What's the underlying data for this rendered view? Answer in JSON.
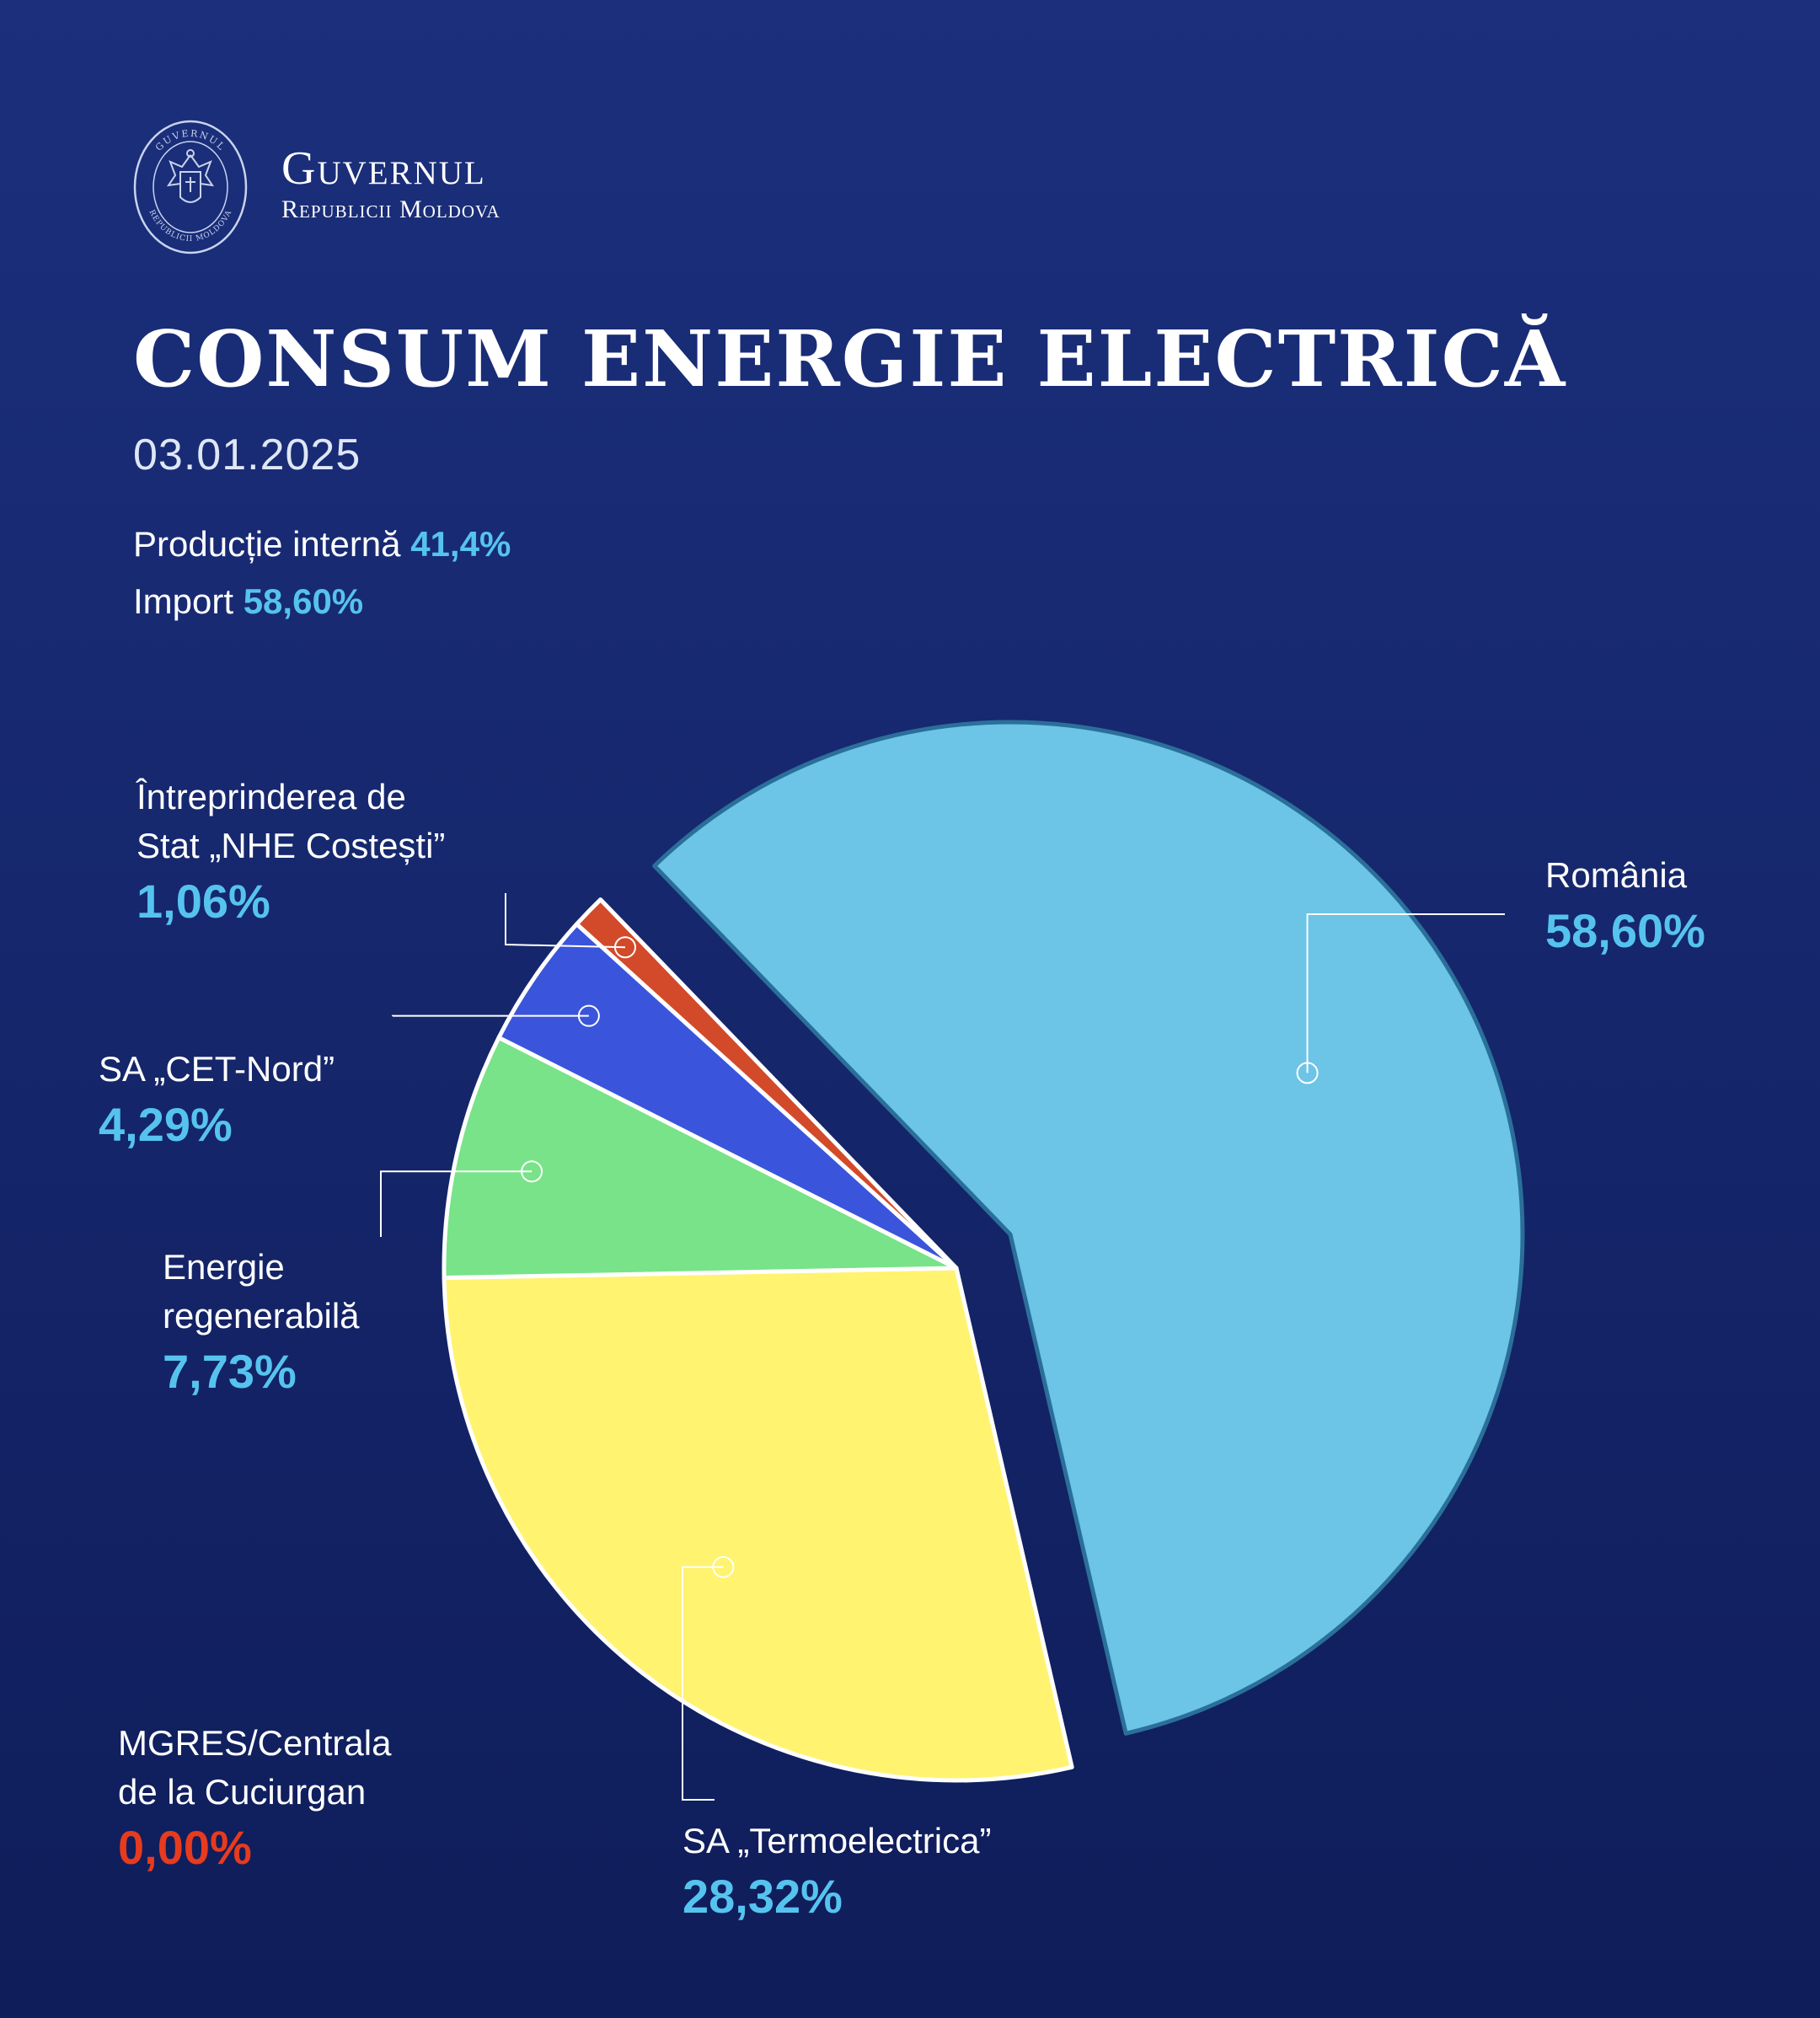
{
  "header": {
    "brand_name": "Guvernul",
    "brand_subtitle": "Republicii Moldova",
    "logo_text_top": "GUVERNUL",
    "logo_text_bottom": "REPUBLICII MOLDOVA"
  },
  "chart_data": {
    "type": "pie",
    "title": "CONSUM ENERGIE ELECTRICĂ",
    "date": "03.01.2025",
    "summary": [
      {
        "label": "Producție internă",
        "value": "41,4%"
      },
      {
        "label": "Import",
        "value": "58,60%"
      }
    ],
    "slices": [
      {
        "label_lines": [
          "România"
        ],
        "value": 58.6,
        "display": "58,60%",
        "color": "#6cc4e6",
        "exploded": true
      },
      {
        "label_lines": [
          "SA „Termoelectrica”"
        ],
        "value": 28.32,
        "display": "28,32%",
        "color": "#fff370"
      },
      {
        "label_lines": [
          "Energie",
          "regenerabilă"
        ],
        "value": 7.73,
        "display": "7,73%",
        "color": "#78e388"
      },
      {
        "label_lines": [
          "SA „CET-Nord”"
        ],
        "value": 4.29,
        "display": "4,29%",
        "color": "#3a55dc"
      },
      {
        "label_lines": [
          "Întreprinderea de",
          "Stat „NHE Costești”"
        ],
        "value": 1.06,
        "display": "1,06%",
        "color": "#d24a2a"
      },
      {
        "label_lines": [
          "MGRES/Centrala",
          "de la Cuciurgan"
        ],
        "value": 0.0,
        "display": "0,00%",
        "color": "#e63b1e"
      }
    ],
    "legend": "callout-labels"
  }
}
